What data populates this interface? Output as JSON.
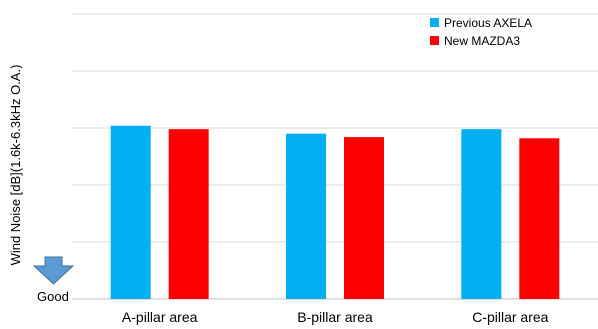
{
  "chart_data": {
    "type": "bar",
    "categories": [
      "A-pillar area",
      "B-pillar area",
      "C-pillar area"
    ],
    "series": [
      {
        "name": "Previous AXELA",
        "color": "#00B0F0",
        "values": [
          0.76,
          0.725,
          0.745
        ]
      },
      {
        "name": "New MAZDA3",
        "color": "#FF0000",
        "values": [
          0.745,
          0.71,
          0.705
        ]
      }
    ],
    "ylabel": "Wind Noise [dB](1.6k-6.3kHz O.A.)",
    "ylim": [
      0,
      1.25
    ],
    "grid": true,
    "legend_position": "top-right",
    "annotation": {
      "text": "Good",
      "icon": "down-arrow-icon",
      "color": "#5B9BD5"
    }
  }
}
